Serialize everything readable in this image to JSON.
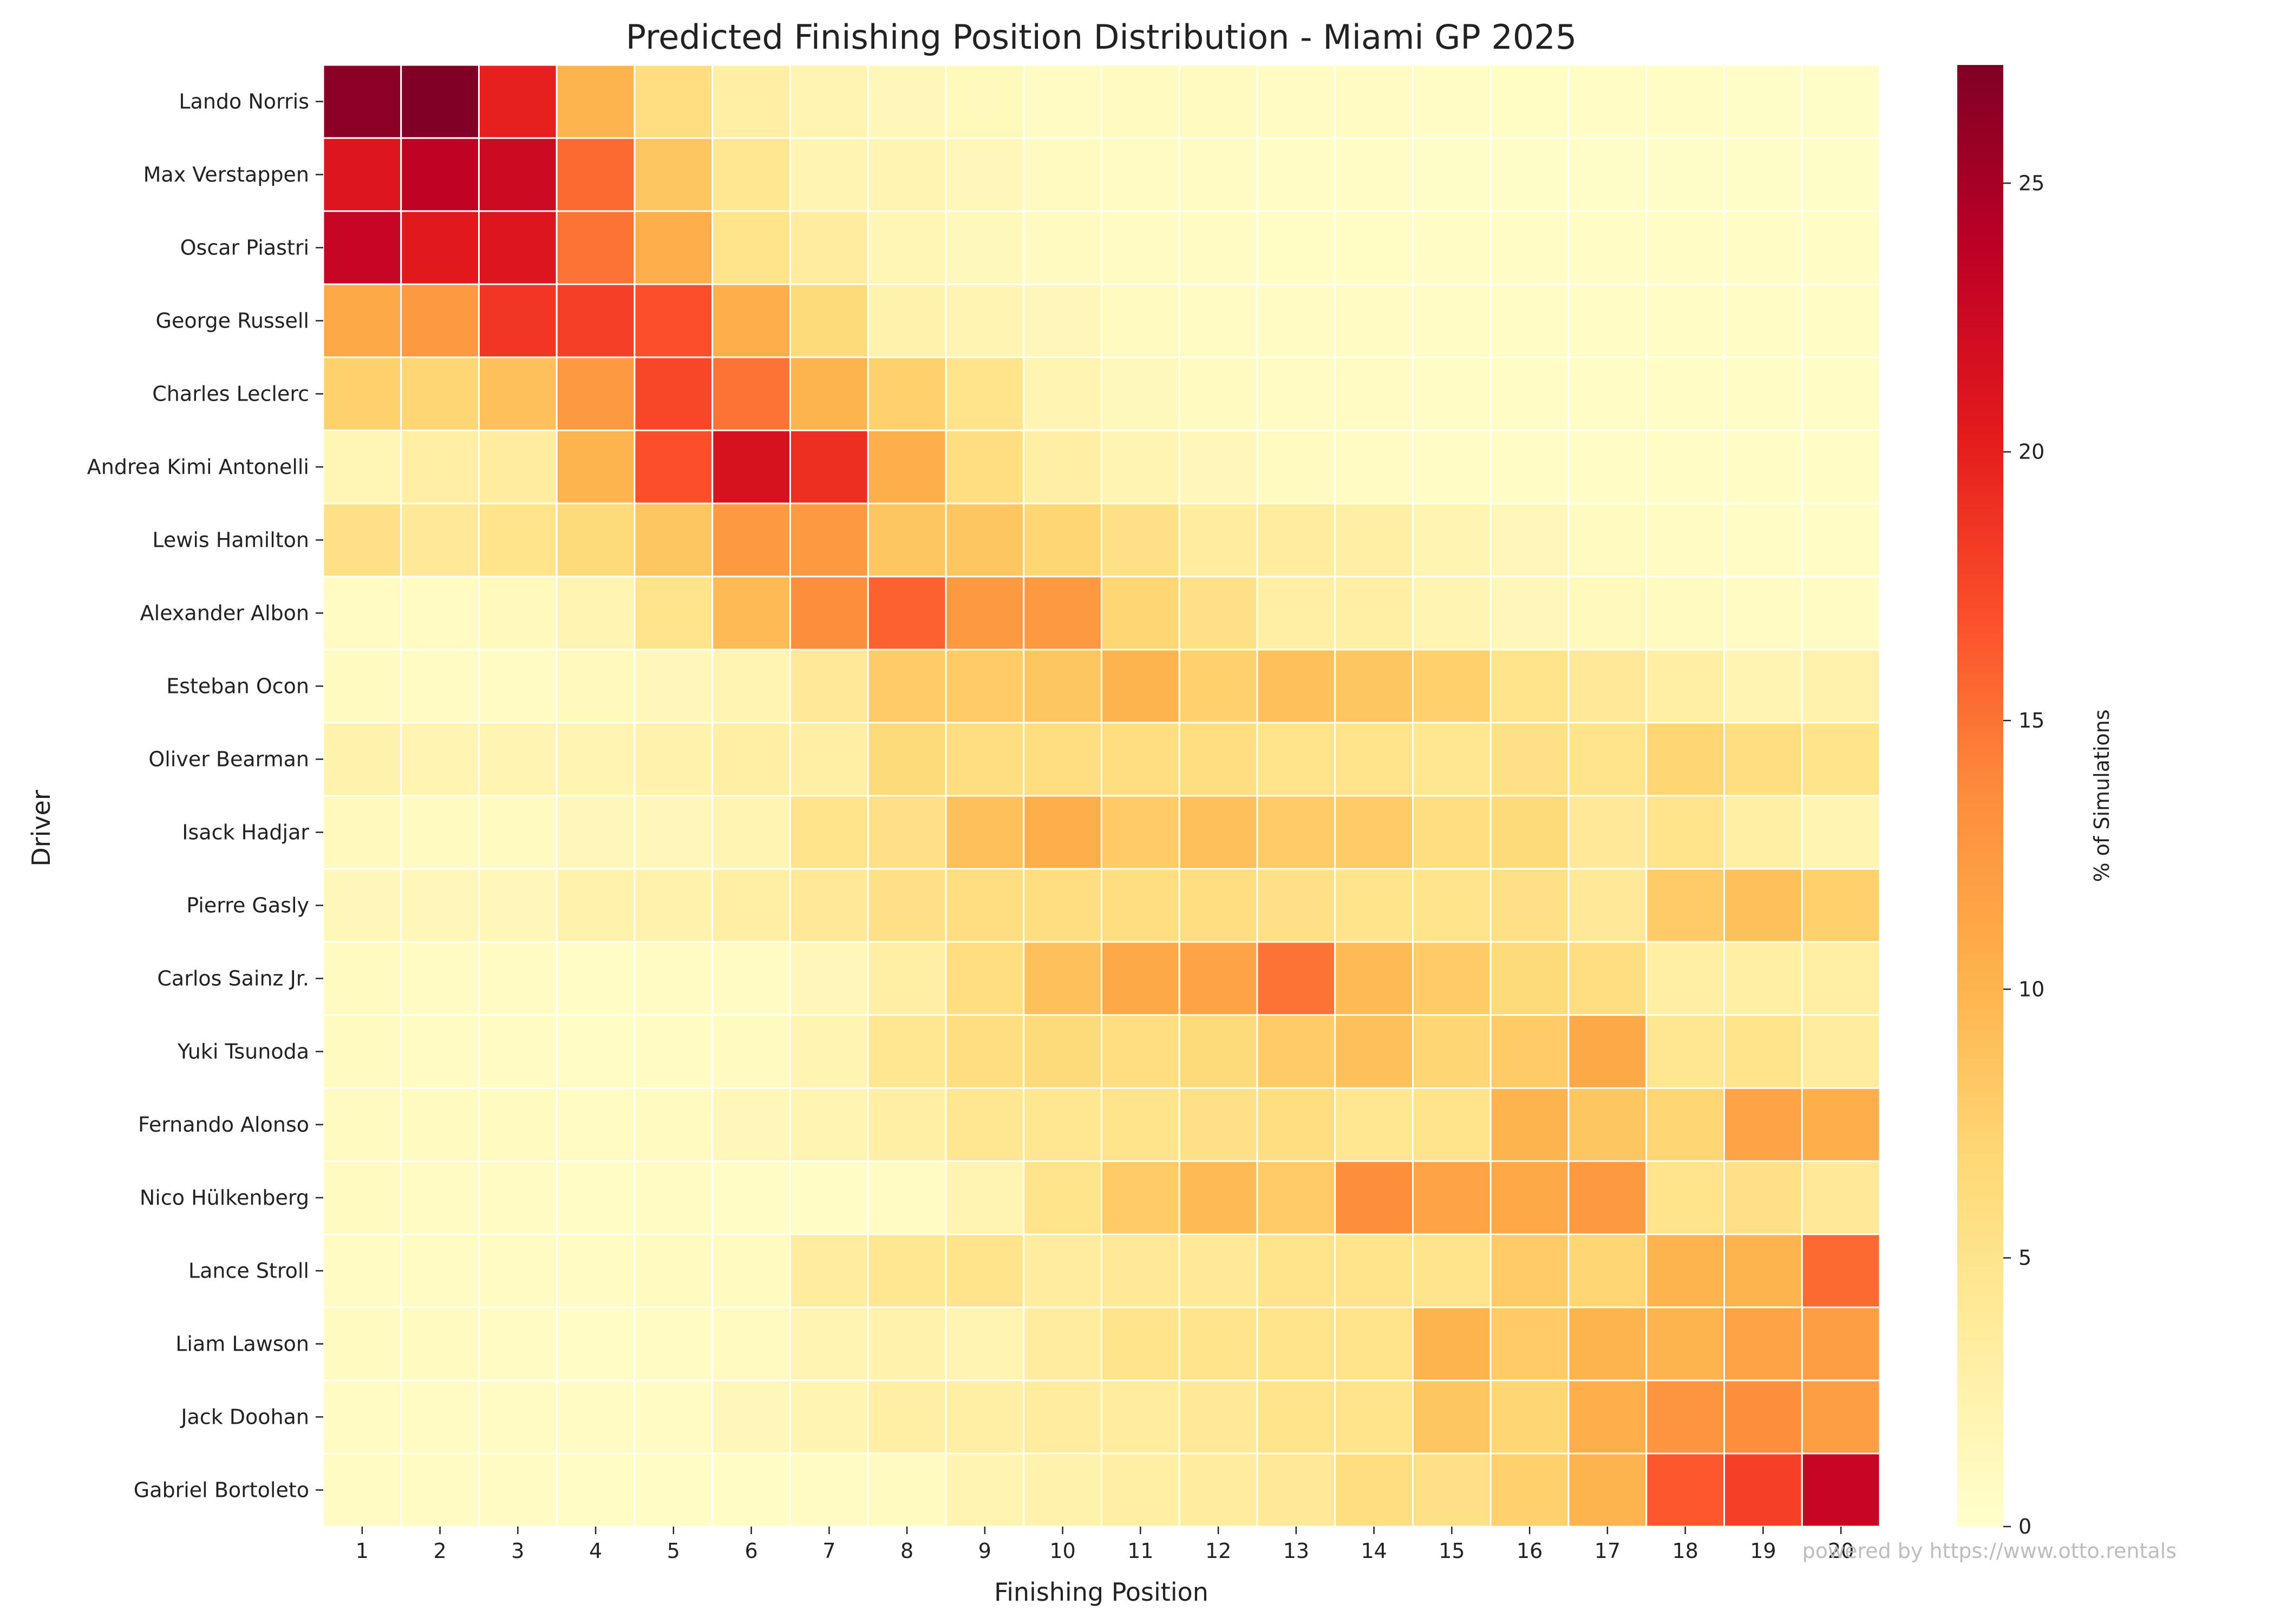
{
  "chart_data": {
    "type": "heatmap",
    "title": "Predicted Finishing Position Distribution - Miami GP 2025",
    "xlabel": "Finishing Position",
    "ylabel": "Driver",
    "x": [
      "1",
      "2",
      "3",
      "4",
      "5",
      "6",
      "7",
      "8",
      "9",
      "10",
      "11",
      "12",
      "13",
      "14",
      "15",
      "16",
      "17",
      "18",
      "19",
      "20"
    ],
    "y": [
      "Lando Norris",
      "Max Verstappen",
      "Oscar Piastri",
      "George Russell",
      "Charles Leclerc",
      "Andrea Kimi Antonelli",
      "Lewis Hamilton",
      "Alexander Albon",
      "Esteban Ocon",
      "Oliver Bearman",
      "Isack Hadjar",
      "Pierre Gasly",
      "Carlos Sainz Jr.",
      "Yuki Tsunoda",
      "Fernando Alonso",
      "Nico Hülkenberg",
      "Lance Stroll",
      "Liam Lawson",
      "Jack Doohan",
      "Gabriel Bortoleto"
    ],
    "values": [
      [
        26.5,
        27.2,
        20.0,
        10.0,
        6.0,
        3.0,
        2.0,
        1.5,
        1.2,
        0.8,
        1.0,
        1.0,
        0.8,
        0.7,
        0.5,
        0.6,
        0.5,
        0.5,
        0.4,
        0.4
      ],
      [
        21.0,
        23.5,
        22.5,
        15.5,
        8.5,
        4.5,
        2.0,
        2.0,
        1.5,
        1.0,
        0.8,
        0.7,
        0.5,
        0.5,
        0.4,
        0.4,
        0.4,
        0.4,
        0.4,
        0.4
      ],
      [
        23.0,
        20.5,
        21.0,
        15.0,
        10.5,
        5.0,
        3.5,
        1.8,
        1.3,
        1.0,
        0.8,
        0.7,
        0.6,
        0.6,
        0.5,
        0.5,
        0.5,
        0.5,
        0.5,
        0.5
      ],
      [
        11.0,
        12.5,
        18.5,
        18.0,
        17.0,
        10.5,
        6.5,
        2.5,
        2.0,
        1.5,
        1.0,
        0.8,
        0.7,
        0.7,
        0.5,
        0.5,
        0.5,
        0.5,
        0.5,
        0.5
      ],
      [
        7.5,
        7.0,
        9.0,
        12.5,
        17.5,
        15.0,
        10.0,
        7.5,
        5.0,
        2.0,
        1.3,
        1.0,
        0.8,
        0.7,
        0.5,
        0.5,
        0.5,
        0.5,
        0.5,
        0.5
      ],
      [
        1.8,
        3.0,
        3.5,
        10.0,
        17.0,
        21.5,
        19.0,
        10.5,
        6.0,
        3.0,
        2.0,
        1.5,
        1.0,
        0.8,
        0.5,
        0.5,
        0.5,
        0.5,
        0.5,
        0.5
      ],
      [
        5.5,
        4.0,
        5.0,
        6.5,
        8.5,
        12.5,
        12.5,
        8.5,
        8.5,
        7.0,
        5.5,
        3.5,
        3.5,
        3.0,
        2.0,
        1.5,
        1.0,
        0.8,
        0.5,
        0.5
      ],
      [
        0.8,
        0.8,
        1.2,
        2.0,
        5.0,
        9.5,
        13.5,
        16.0,
        12.5,
        12.5,
        7.0,
        5.5,
        3.0,
        3.0,
        2.0,
        1.5,
        1.2,
        1.0,
        0.8,
        0.8
      ],
      [
        1.0,
        0.8,
        0.8,
        1.2,
        1.5,
        2.0,
        4.0,
        8.0,
        8.0,
        8.5,
        10.0,
        7.5,
        9.0,
        8.5,
        7.5,
        5.0,
        4.0,
        3.0,
        2.0,
        2.5
      ],
      [
        2.5,
        2.0,
        2.0,
        2.0,
        2.5,
        3.0,
        3.0,
        6.5,
        6.0,
        6.0,
        6.0,
        6.0,
        5.0,
        5.0,
        4.5,
        5.5,
        5.0,
        7.0,
        6.0,
        5.0
      ],
      [
        1.2,
        1.0,
        1.0,
        1.5,
        1.5,
        2.0,
        5.0,
        5.5,
        9.0,
        10.5,
        8.0,
        9.0,
        8.0,
        8.0,
        6.0,
        6.5,
        4.0,
        5.0,
        3.0,
        2.0
      ],
      [
        1.5,
        1.5,
        1.5,
        2.5,
        2.5,
        3.0,
        4.0,
        5.5,
        6.0,
        6.0,
        6.0,
        6.0,
        5.5,
        5.0,
        5.0,
        5.5,
        4.0,
        8.0,
        9.0,
        7.5
      ],
      [
        1.0,
        0.8,
        0.8,
        0.5,
        0.8,
        0.8,
        1.5,
        3.0,
        6.0,
        9.0,
        11.0,
        11.5,
        15.0,
        9.5,
        8.0,
        6.5,
        6.0,
        3.0,
        3.0,
        3.0
      ],
      [
        1.0,
        0.8,
        0.8,
        0.5,
        0.8,
        1.0,
        2.0,
        4.5,
        6.0,
        6.5,
        6.0,
        6.5,
        8.0,
        9.0,
        7.0,
        8.0,
        11.0,
        4.5,
        5.0,
        3.5
      ],
      [
        1.0,
        1.0,
        1.0,
        0.8,
        1.0,
        1.5,
        2.0,
        3.0,
        4.5,
        4.5,
        5.0,
        5.5,
        6.0,
        4.5,
        5.0,
        10.0,
        8.5,
        7.0,
        11.5,
        10.5
      ],
      [
        1.0,
        0.8,
        0.8,
        0.5,
        0.8,
        0.5,
        0.5,
        0.8,
        2.0,
        5.0,
        8.0,
        9.5,
        8.0,
        13.5,
        11.5,
        11.0,
        12.5,
        5.0,
        5.5,
        4.0
      ],
      [
        0.8,
        0.8,
        0.8,
        0.8,
        1.0,
        1.0,
        3.5,
        4.5,
        5.0,
        3.5,
        4.0,
        4.0,
        5.0,
        5.0,
        5.0,
        8.0,
        7.0,
        10.0,
        10.0,
        15.5
      ],
      [
        1.0,
        1.0,
        0.8,
        0.5,
        0.8,
        1.0,
        2.0,
        2.5,
        2.0,
        3.5,
        5.0,
        5.0,
        5.0,
        5.0,
        10.0,
        8.0,
        10.0,
        10.0,
        11.5,
        12.0
      ],
      [
        0.8,
        0.8,
        0.8,
        0.8,
        0.8,
        1.5,
        2.0,
        3.0,
        3.0,
        3.5,
        3.5,
        4.0,
        5.0,
        5.0,
        8.5,
        7.0,
        10.5,
        13.0,
        13.5,
        12.0
      ],
      [
        0.8,
        0.8,
        0.8,
        0.5,
        0.5,
        0.5,
        0.8,
        1.0,
        2.0,
        2.5,
        3.0,
        3.5,
        4.0,
        6.0,
        5.5,
        7.5,
        10.0,
        16.5,
        18.0,
        23.0
      ]
    ],
    "zlim": [
      0,
      27.2
    ],
    "colorbar": {
      "label": "% of Simulations",
      "ticks": [
        "0",
        "5",
        "10",
        "15",
        "20",
        "25"
      ],
      "tick_values": [
        0,
        5,
        10,
        15,
        20,
        25
      ]
    },
    "colormap": "YlOrRd",
    "cell_border_color": "#ffffff"
  },
  "watermark": "powered by https://www.otto.rentals"
}
